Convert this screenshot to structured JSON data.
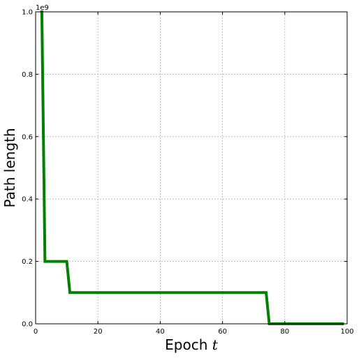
{
  "chart_data": {
    "type": "line",
    "title": "",
    "xlabel": "Epoch",
    "xlabel_var": "t",
    "ylabel": "Path length",
    "y_offset_text": "1e9",
    "xlim": [
      0,
      100
    ],
    "ylim": [
      0,
      1.0
    ],
    "y_scale_multiplier": 1000000000,
    "x_ticks": [
      0,
      20,
      40,
      60,
      80,
      100
    ],
    "x_tick_labels": [
      "0",
      "20",
      "40",
      "60",
      "80",
      "100"
    ],
    "y_ticks": [
      0,
      0.2,
      0.4,
      0.6,
      0.8,
      1.0
    ],
    "y_tick_labels": [
      "0.0",
      "0.2",
      "0.4",
      "0.6",
      "0.8",
      "1.0"
    ],
    "grid": true,
    "series": [
      {
        "color": "#008000",
        "x": [
          1.5,
          2,
          3,
          10,
          11,
          74,
          75,
          99
        ],
        "y": [
          1.0,
          1.0,
          0.2,
          0.2,
          0.1,
          0.1,
          0.0,
          0.0
        ]
      }
    ]
  }
}
